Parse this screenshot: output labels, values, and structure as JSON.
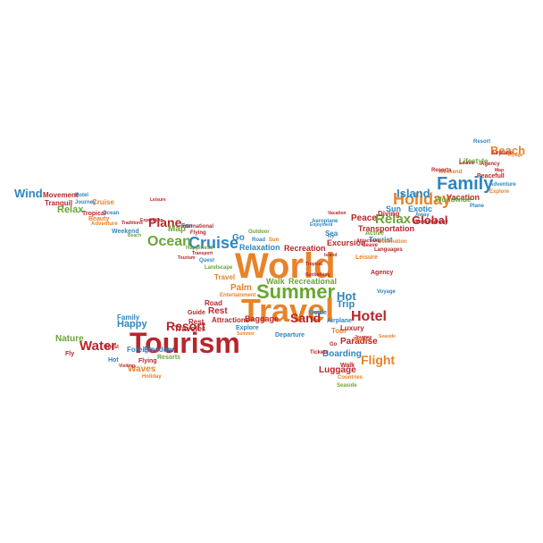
{
  "colors": {
    "orange": "#e8832a",
    "green": "#6aa535",
    "blue": "#2e86c1",
    "red": "#b8262b",
    "background": "#ffffff"
  },
  "words": [
    {
      "text": "World",
      "color": "orange"
    },
    {
      "text": "Travel",
      "color": "orange"
    },
    {
      "text": "Summer",
      "color": "green"
    },
    {
      "text": "Tourism",
      "color": "red"
    },
    {
      "text": "Family",
      "color": "blue"
    },
    {
      "text": "Holiday",
      "color": "orange"
    },
    {
      "text": "Beach",
      "color": "orange"
    },
    {
      "text": "Cruise",
      "color": "blue"
    },
    {
      "text": "Ocean",
      "color": "green"
    },
    {
      "text": "Relax",
      "color": "green"
    },
    {
      "text": "Relax",
      "color": "green"
    },
    {
      "text": "Plane",
      "color": "red"
    },
    {
      "text": "Island",
      "color": "blue"
    },
    {
      "text": "Global",
      "color": "red"
    },
    {
      "text": "Water",
      "color": "red"
    },
    {
      "text": "Resort",
      "color": "red"
    },
    {
      "text": "Hotel",
      "color": "red"
    },
    {
      "text": "Flight",
      "color": "orange"
    },
    {
      "text": "Sand",
      "color": "red"
    },
    {
      "text": "Wind",
      "color": "blue"
    },
    {
      "text": "Hot",
      "color": "blue"
    },
    {
      "text": "Trip",
      "color": "blue"
    },
    {
      "text": "Exotic",
      "color": "blue"
    },
    {
      "text": "Vacation",
      "color": "red"
    },
    {
      "text": "Worldwide",
      "color": "green"
    },
    {
      "text": "Peace",
      "color": "red"
    },
    {
      "text": "Sun",
      "color": "blue"
    },
    {
      "text": "Map",
      "color": "green"
    },
    {
      "text": "Palm",
      "color": "orange"
    },
    {
      "text": "Go",
      "color": "blue"
    },
    {
      "text": "Rest",
      "color": "red"
    },
    {
      "text": "Happy",
      "color": "blue"
    },
    {
      "text": "Nature",
      "color": "green"
    },
    {
      "text": "Boarding",
      "color": "blue"
    },
    {
      "text": "Paradise",
      "color": "red"
    },
    {
      "text": "Luggage",
      "color": "red"
    },
    {
      "text": "Waves",
      "color": "orange"
    },
    {
      "text": "Freedom",
      "color": "blue"
    },
    {
      "text": "Foreign",
      "color": "blue"
    },
    {
      "text": "Walk",
      "color": "green"
    },
    {
      "text": "Recreational",
      "color": "green"
    },
    {
      "text": "Relaxation",
      "color": "blue"
    },
    {
      "text": "Recreation",
      "color": "red"
    },
    {
      "text": "Excursion",
      "color": "red"
    },
    {
      "text": "Transportation",
      "color": "red"
    },
    {
      "text": "Diving",
      "color": "red"
    },
    {
      "text": "Tourist",
      "color": "blue"
    },
    {
      "text": "Active",
      "color": "green"
    },
    {
      "text": "Sea",
      "color": "blue"
    },
    {
      "text": "Away",
      "color": "blue"
    },
    {
      "text": "Lifestyle",
      "color": "green"
    },
    {
      "text": "Peacefull",
      "color": "red"
    },
    {
      "text": "Movement",
      "color": "red"
    },
    {
      "text": "Hotel",
      "color": "blue"
    },
    {
      "text": "Tranquil",
      "color": "red"
    },
    {
      "text": "Journey",
      "color": "blue"
    },
    {
      "text": "Cruise",
      "color": "orange"
    },
    {
      "text": "Tropical",
      "color": "red"
    },
    {
      "text": "Ocean",
      "color": "blue"
    },
    {
      "text": "Beauty",
      "color": "orange"
    },
    {
      "text": "Adventure",
      "color": "orange"
    },
    {
      "text": "Traditions",
      "color": "red"
    },
    {
      "text": "Weekend",
      "color": "blue"
    },
    {
      "text": "Beach",
      "color": "green"
    },
    {
      "text": "Expedition",
      "color": "red"
    },
    {
      "text": "Leisure",
      "color": "red"
    },
    {
      "text": "Fun",
      "color": "blue"
    },
    {
      "text": "Flying",
      "color": "red"
    },
    {
      "text": "International",
      "color": "red"
    },
    {
      "text": "Outdoor",
      "color": "green"
    },
    {
      "text": "Road",
      "color": "blue"
    },
    {
      "text": "Sun",
      "color": "orange"
    },
    {
      "text": "Happiness",
      "color": "green"
    },
    {
      "text": "Transport",
      "color": "red"
    },
    {
      "text": "Tourism",
      "color": "red"
    },
    {
      "text": "Quest",
      "color": "blue"
    },
    {
      "text": "Landscape",
      "color": "green"
    },
    {
      "text": "Travel",
      "color": "orange"
    },
    {
      "text": "Entertainment",
      "color": "orange"
    },
    {
      "text": "Road",
      "color": "red"
    },
    {
      "text": "Guide",
      "color": "red"
    },
    {
      "text": "Rest",
      "color": "red"
    },
    {
      "text": "Traveler",
      "color": "red"
    },
    {
      "text": "Attractions",
      "color": "red"
    },
    {
      "text": "Baggage",
      "color": "red"
    },
    {
      "text": "Family",
      "color": "blue"
    },
    {
      "text": "Quest",
      "color": "red"
    },
    {
      "text": "Fly",
      "color": "red"
    },
    {
      "text": "Hot",
      "color": "blue"
    },
    {
      "text": "Visiting",
      "color": "red"
    },
    {
      "text": "Flying",
      "color": "red"
    },
    {
      "text": "Resorts",
      "color": "green"
    },
    {
      "text": "Holiday",
      "color": "orange"
    },
    {
      "text": "Guide",
      "color": "blue"
    },
    {
      "text": "Tour",
      "color": "orange"
    },
    {
      "text": "Departure",
      "color": "blue"
    },
    {
      "text": "Airplane",
      "color": "blue"
    },
    {
      "text": "Tickets",
      "color": "red"
    },
    {
      "text": "Go",
      "color": "red"
    },
    {
      "text": "Tourist",
      "color": "orange"
    },
    {
      "text": "Luxury",
      "color": "red"
    },
    {
      "text": "Explore",
      "color": "blue"
    },
    {
      "text": "Summer",
      "color": "orange"
    },
    {
      "text": "Walk",
      "color": "red"
    },
    {
      "text": "Countries",
      "color": "orange"
    },
    {
      "text": "Seaside",
      "color": "green"
    },
    {
      "text": "Voyage",
      "color": "blue"
    },
    {
      "text": "Agency",
      "color": "red"
    },
    {
      "text": "Leisure",
      "color": "orange"
    },
    {
      "text": "Leave",
      "color": "red"
    },
    {
      "text": "Destination",
      "color": "orange"
    },
    {
      "text": "Languages",
      "color": "red"
    },
    {
      "text": "Welcome",
      "color": "red"
    },
    {
      "text": "Away",
      "color": "red"
    },
    {
      "text": "Plane",
      "color": "blue"
    },
    {
      "text": "Resort",
      "color": "blue"
    },
    {
      "text": "Airplane",
      "color": "red"
    },
    {
      "text": "Voyage",
      "color": "orange"
    },
    {
      "text": "Weekend",
      "color": "orange"
    },
    {
      "text": "Resorts",
      "color": "red"
    },
    {
      "text": "Leave",
      "color": "red"
    },
    {
      "text": "Agency",
      "color": "red"
    },
    {
      "text": "Map",
      "color": "red"
    },
    {
      "text": "Adventure",
      "color": "blue"
    },
    {
      "text": "Explore",
      "color": "orange"
    },
    {
      "text": "Vacation",
      "color": "red"
    },
    {
      "text": "Aeroplane",
      "color": "blue"
    },
    {
      "text": "Enjoyment",
      "color": "blue"
    },
    {
      "text": "Fly",
      "color": "blue"
    },
    {
      "text": "Tropical",
      "color": "red"
    },
    {
      "text": "Island",
      "color": "red"
    },
    {
      "text": "Sunbathing",
      "color": "red"
    },
    {
      "text": "Attractions",
      "color": "red"
    },
    {
      "text": "Journey",
      "color": "red"
    },
    {
      "text": "Seaside",
      "color": "orange"
    }
  ]
}
